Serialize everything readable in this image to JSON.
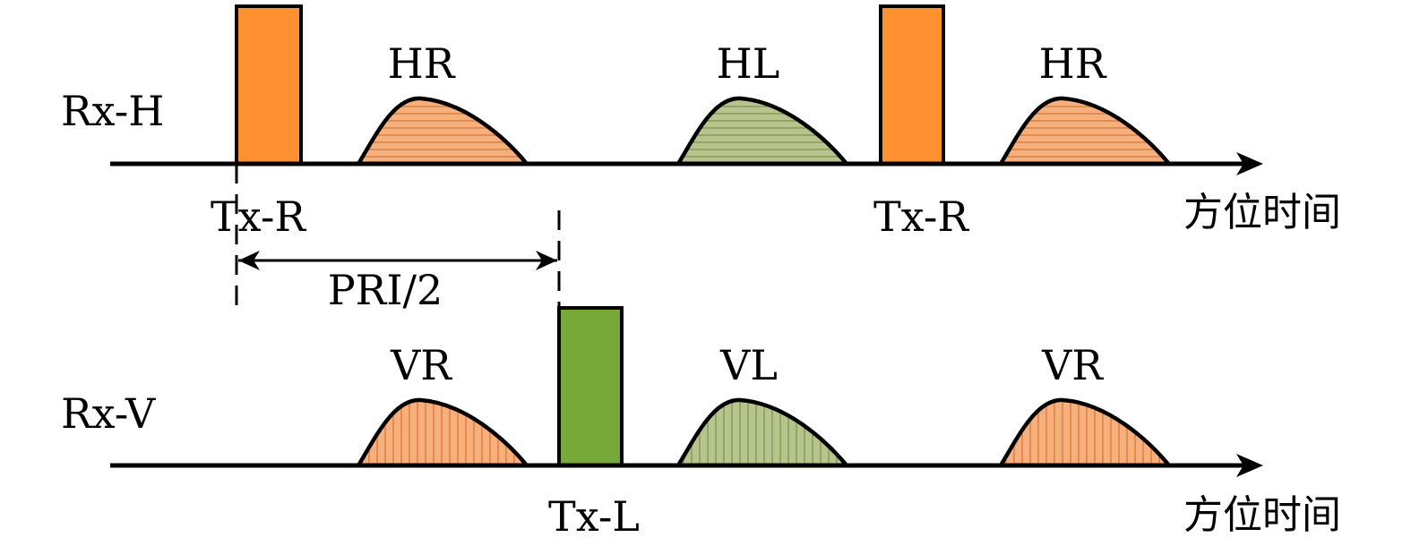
{
  "colors": {
    "tx_r_fill": "#ff9133",
    "tx_l_fill": "#77a83a",
    "echo_orange_fill": "#f5b07e",
    "echo_orange_stripe": "#e07a3a",
    "echo_green_fill": "#b7c48e",
    "echo_green_stripe": "#7f9a4e"
  },
  "rx_h": {
    "label": "Rx-H",
    "axis_label": "方位时间",
    "tx_labels": [
      "Tx-R",
      "Tx-R"
    ],
    "echoes": [
      "HR",
      "HL",
      "HR"
    ]
  },
  "rx_v": {
    "label": "Rx-V",
    "axis_label": "方位时间",
    "tx_label": "Tx-L",
    "echoes": [
      "VR",
      "VL",
      "VR"
    ]
  },
  "interval_label": "PRI/2"
}
